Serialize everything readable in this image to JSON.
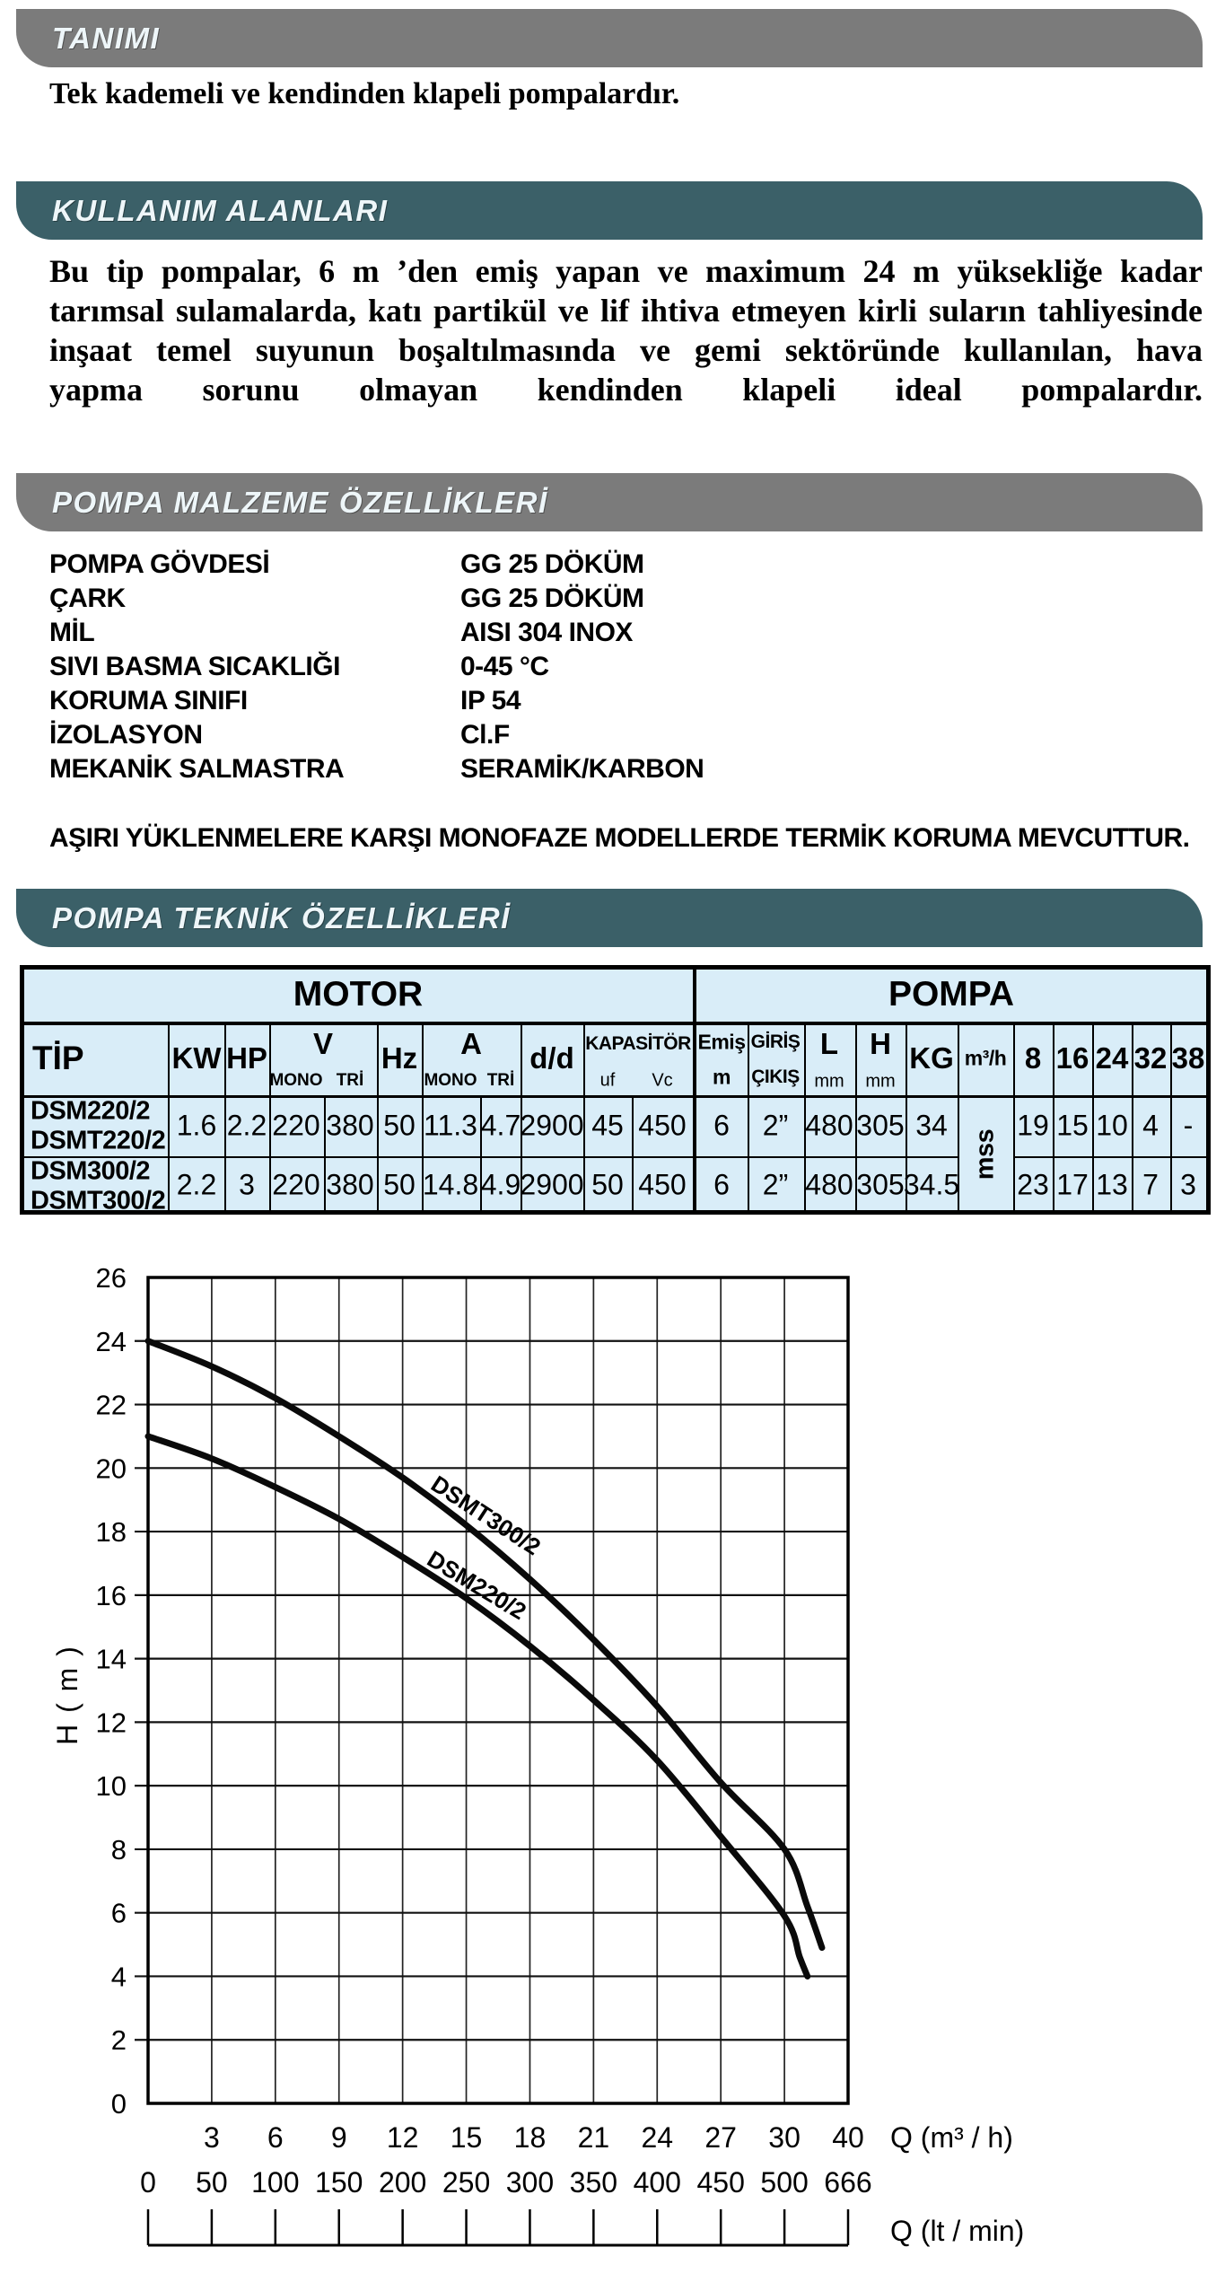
{
  "banners": {
    "tanimi": "TANIMI",
    "kullanim": "KULLANIM ALANLARI",
    "malzeme": "POMPA MALZEME ÖZELLİKLERİ",
    "teknik": "POMPA TEKNİK ÖZELLİKLERİ"
  },
  "definition": "Tek kademeli ve kendinden klapeli pompalardır.",
  "usage_lines": [
    "Bu tip pompalar, 6 m ’den emiş yapan ve maximum 24 m yüksekliğe kadar",
    "tarımsal sulamalarda, katı partikül ve lif ihtiva etmeyen kirli suların tahliyesinde",
    "inşaat temel suyunun boşaltılmasında ve gemi sektöründe kullanılan, hava",
    "yapma sorunu olmayan kendinden klapeli ideal pompalardır."
  ],
  "specs": {
    "rows": [
      {
        "label": "POMPA GÖVDESİ",
        "value": "GG 25  DÖKÜM"
      },
      {
        "label": "ÇARK",
        "value": "GG 25 DÖKÜM"
      },
      {
        "label": "MİL",
        "value": "AISI 304 INOX"
      },
      {
        "label": "SIVI BASMA SICAKLIĞI",
        "value": "0-45 °C"
      },
      {
        "label": "KORUMA SINIFI",
        "value": "IP 54"
      },
      {
        "label": "İZOLASYON",
        "value": "Cl.F"
      },
      {
        "label": "MEKANİK SALMASTRA",
        "value": "SERAMİK/KARBON"
      }
    ],
    "note": "AŞIRI YÜKLENMELERE KARŞI MONOFAZE MODELLERDE TERMİK KORUMA MEVCUTTUR."
  },
  "table": {
    "group_motor": "MOTOR",
    "group_pompa": "POMPA",
    "headers": {
      "tip": "TİP",
      "kw": "KW",
      "hp": "HP",
      "v": "V",
      "mono": "MONO",
      "tri": "TRİ",
      "hz": "Hz",
      "a": "A",
      "dd": "d/d",
      "kapasitor": "KAPASİTÖR",
      "uf": "uf",
      "vc": "Vc",
      "emis": "Emiş",
      "m": "m",
      "giris": "GİRİŞ",
      "cikis": "ÇIKIŞ",
      "l": "L",
      "h": "H",
      "mm": "mm",
      "kg": "KG",
      "m3h": "m³/h",
      "q8": "8",
      "q16": "16",
      "q24": "24",
      "q32": "32",
      "q38": "38",
      "mss": "mss"
    },
    "rows": [
      {
        "tip1": "DSM220/2",
        "tip2": "DSMT220/2",
        "kw": "1.6",
        "hp": "2.2",
        "v_mono": "220",
        "v_tri": "380",
        "hz": "50",
        "a_mono": "11.3",
        "a_tri": "4.7",
        "dd": "2900",
        "uf": "45",
        "vc": "450",
        "emis": "6",
        "giris_cikis": "2”",
        "l": "480",
        "h": "305",
        "kg": "34",
        "h8": "19",
        "h16": "15",
        "h24": "10",
        "h32": "4",
        "h38": "-"
      },
      {
        "tip1": "DSM300/2",
        "tip2": "DSMT300/2",
        "kw": "2.2",
        "hp": "3",
        "v_mono": "220",
        "v_tri": "380",
        "hz": "50",
        "a_mono": "14.8",
        "a_tri": "4.9",
        "dd": "2900",
        "uf": "50",
        "vc": "450",
        "emis": "6",
        "giris_cikis": "2”",
        "l": "480",
        "h": "305",
        "kg": "34.5",
        "h8": "23",
        "h16": "17",
        "h24": "13",
        "h32": "7",
        "h38": "3"
      }
    ]
  },
  "chart_data": {
    "type": "line",
    "title": "",
    "ylabel": "H ( m )",
    "xlabel_primary": "Q (m³ / h)",
    "xlabel_secondary": "Q (lt / min)",
    "ylim": [
      0,
      26
    ],
    "y_tick_step": 2,
    "y_ticks": [
      "0",
      "2",
      "4",
      "6",
      "8",
      "10",
      "12",
      "14",
      "16",
      "18",
      "20",
      "22",
      "24",
      "26"
    ],
    "x_ticks_m3h": {
      "gridlines": [
        1,
        2,
        3,
        4,
        5,
        6,
        7,
        8,
        9,
        10,
        11
      ],
      "labels": [
        "3",
        "6",
        "9",
        "12",
        "15",
        "18",
        "21",
        "24",
        "27",
        "30",
        "40"
      ]
    },
    "x_ticks_ltmin": {
      "gridlines": [
        0,
        1,
        2,
        3,
        4,
        5,
        6,
        7,
        8,
        9,
        10,
        11
      ],
      "labels": [
        "0",
        "50",
        "100",
        "150",
        "200",
        "250",
        "300",
        "350",
        "400",
        "450",
        "500",
        "666"
      ]
    },
    "grid": true,
    "legend_position": "on-curve",
    "series": [
      {
        "name": "DSMT300/2",
        "points_lt_min": [
          [
            0,
            24
          ],
          [
            50,
            23.2
          ],
          [
            100,
            22.2
          ],
          [
            150,
            21.0
          ],
          [
            200,
            19.7
          ],
          [
            250,
            18.2
          ],
          [
            300,
            16.5
          ],
          [
            350,
            14.6
          ],
          [
            400,
            12.5
          ],
          [
            450,
            10.1
          ],
          [
            500,
            8.0
          ],
          [
            560,
            6.2
          ],
          [
            598,
            4.9
          ]
        ],
        "label_at_lt_min": [
          262,
          18.3
        ],
        "label_angle_deg": 33
      },
      {
        "name": "DSM220/2",
        "points_lt_min": [
          [
            0,
            21
          ],
          [
            50,
            20.3
          ],
          [
            100,
            19.4
          ],
          [
            150,
            18.4
          ],
          [
            200,
            17.2
          ],
          [
            250,
            15.9
          ],
          [
            300,
            14.4
          ],
          [
            350,
            12.7
          ],
          [
            400,
            10.8
          ],
          [
            450,
            8.4
          ],
          [
            500,
            5.9
          ],
          [
            540,
            4.6
          ],
          [
            560,
            4.0
          ]
        ],
        "label_at_lt_min": [
          255,
          16.1
        ],
        "label_angle_deg": 31
      }
    ]
  }
}
